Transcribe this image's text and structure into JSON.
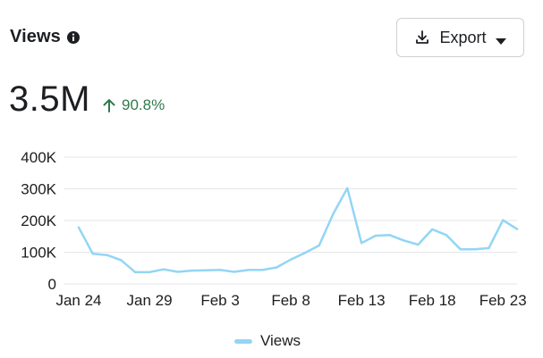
{
  "header": {
    "title": "Views",
    "info_icon": "info-circle-icon",
    "export_label": "Export",
    "export_icon": "download-icon",
    "export_caret": "caret-down-icon"
  },
  "summary": {
    "value": "3.5M",
    "change": "90.8%",
    "change_direction": "up",
    "change_color": "#2f7a4d"
  },
  "legend": {
    "label": "Views"
  },
  "colors": {
    "series": "#93d5f5",
    "grid": "#e4e6eb"
  },
  "chart_data": {
    "type": "line",
    "title": "",
    "xlabel": "",
    "ylabel": "",
    "ylim": [
      0,
      400000
    ],
    "y_ticks": [
      0,
      100000,
      200000,
      300000,
      400000
    ],
    "y_tick_labels": [
      "0",
      "100K",
      "200K",
      "300K",
      "400K"
    ],
    "x_tick_labels": [
      "Jan 24",
      "Jan 29",
      "Feb 3",
      "Feb 8",
      "Feb 13",
      "Feb 18",
      "Feb 23"
    ],
    "grid": true,
    "legend_position": "bottom-center",
    "x": [
      "Jan 24",
      "Jan 25",
      "Jan 26",
      "Jan 27",
      "Jan 28",
      "Jan 29",
      "Jan 30",
      "Jan 31",
      "Feb 1",
      "Feb 2",
      "Feb 3",
      "Feb 4",
      "Feb 5",
      "Feb 6",
      "Feb 7",
      "Feb 8",
      "Feb 9",
      "Feb 10",
      "Feb 11",
      "Feb 12",
      "Feb 13",
      "Feb 14",
      "Feb 15",
      "Feb 16",
      "Feb 17",
      "Feb 18",
      "Feb 19",
      "Feb 20",
      "Feb 21",
      "Feb 22",
      "Feb 23",
      "Feb 24"
    ],
    "series": [
      {
        "name": "Views",
        "values": [
          178000,
          95000,
          91000,
          75000,
          37000,
          37000,
          46000,
          38000,
          42000,
          43000,
          44000,
          38000,
          44000,
          44000,
          52000,
          77000,
          98000,
          121000,
          221000,
          302000,
          129000,
          152000,
          154000,
          137000,
          124000,
          172000,
          154000,
          109000,
          109000,
          113000,
          201000,
          173000
        ]
      }
    ]
  }
}
